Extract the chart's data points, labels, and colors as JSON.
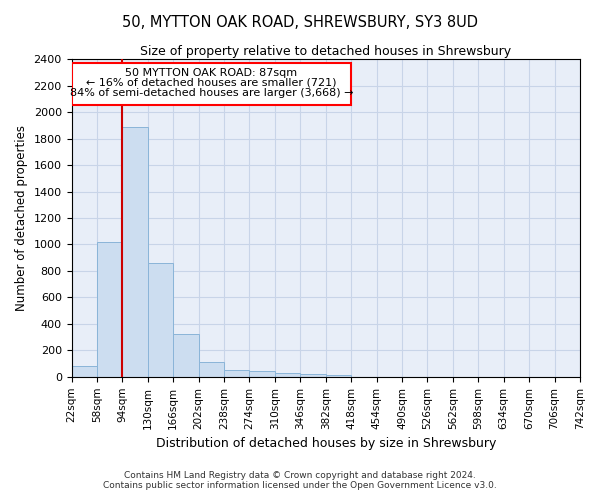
{
  "title": "50, MYTTON OAK ROAD, SHREWSBURY, SY3 8UD",
  "subtitle": "Size of property relative to detached houses in Shrewsbury",
  "xlabel": "Distribution of detached houses by size in Shrewsbury",
  "ylabel": "Number of detached properties",
  "footer_line1": "Contains HM Land Registry data © Crown copyright and database right 2024.",
  "footer_line2": "Contains public sector information licensed under the Open Government Licence v3.0.",
  "bar_color": "#ccddf0",
  "bar_edge_color": "#8ab4d8",
  "grid_color": "#c8d4e8",
  "background_color": "#e8eef8",
  "property_line_color": "#cc0000",
  "property_line_x": 94,
  "annotation_text_line1": "50 MYTTON OAK ROAD: 87sqm",
  "annotation_text_line2": "← 16% of detached houses are smaller (721)",
  "annotation_text_line3": "84% of semi-detached houses are larger (3,668) →",
  "bin_edges": [
    22,
    58,
    94,
    130,
    166,
    202,
    238,
    274,
    310,
    346,
    382,
    418,
    454,
    490,
    526,
    562,
    598,
    634,
    670,
    706,
    742
  ],
  "bin_labels": [
    "22sqm",
    "58sqm",
    "94sqm",
    "130sqm",
    "166sqm",
    "202sqm",
    "238sqm",
    "274sqm",
    "310sqm",
    "346sqm",
    "382sqm",
    "418sqm",
    "454sqm",
    "490sqm",
    "526sqm",
    "562sqm",
    "598sqm",
    "634sqm",
    "670sqm",
    "706sqm",
    "742sqm"
  ],
  "counts": [
    80,
    1020,
    1890,
    860,
    320,
    115,
    50,
    45,
    30,
    20,
    15,
    0,
    0,
    0,
    0,
    0,
    0,
    0,
    0,
    0
  ],
  "ylim": [
    0,
    2400
  ],
  "yticks": [
    0,
    200,
    400,
    600,
    800,
    1000,
    1200,
    1400,
    1600,
    1800,
    2000,
    2200,
    2400
  ]
}
